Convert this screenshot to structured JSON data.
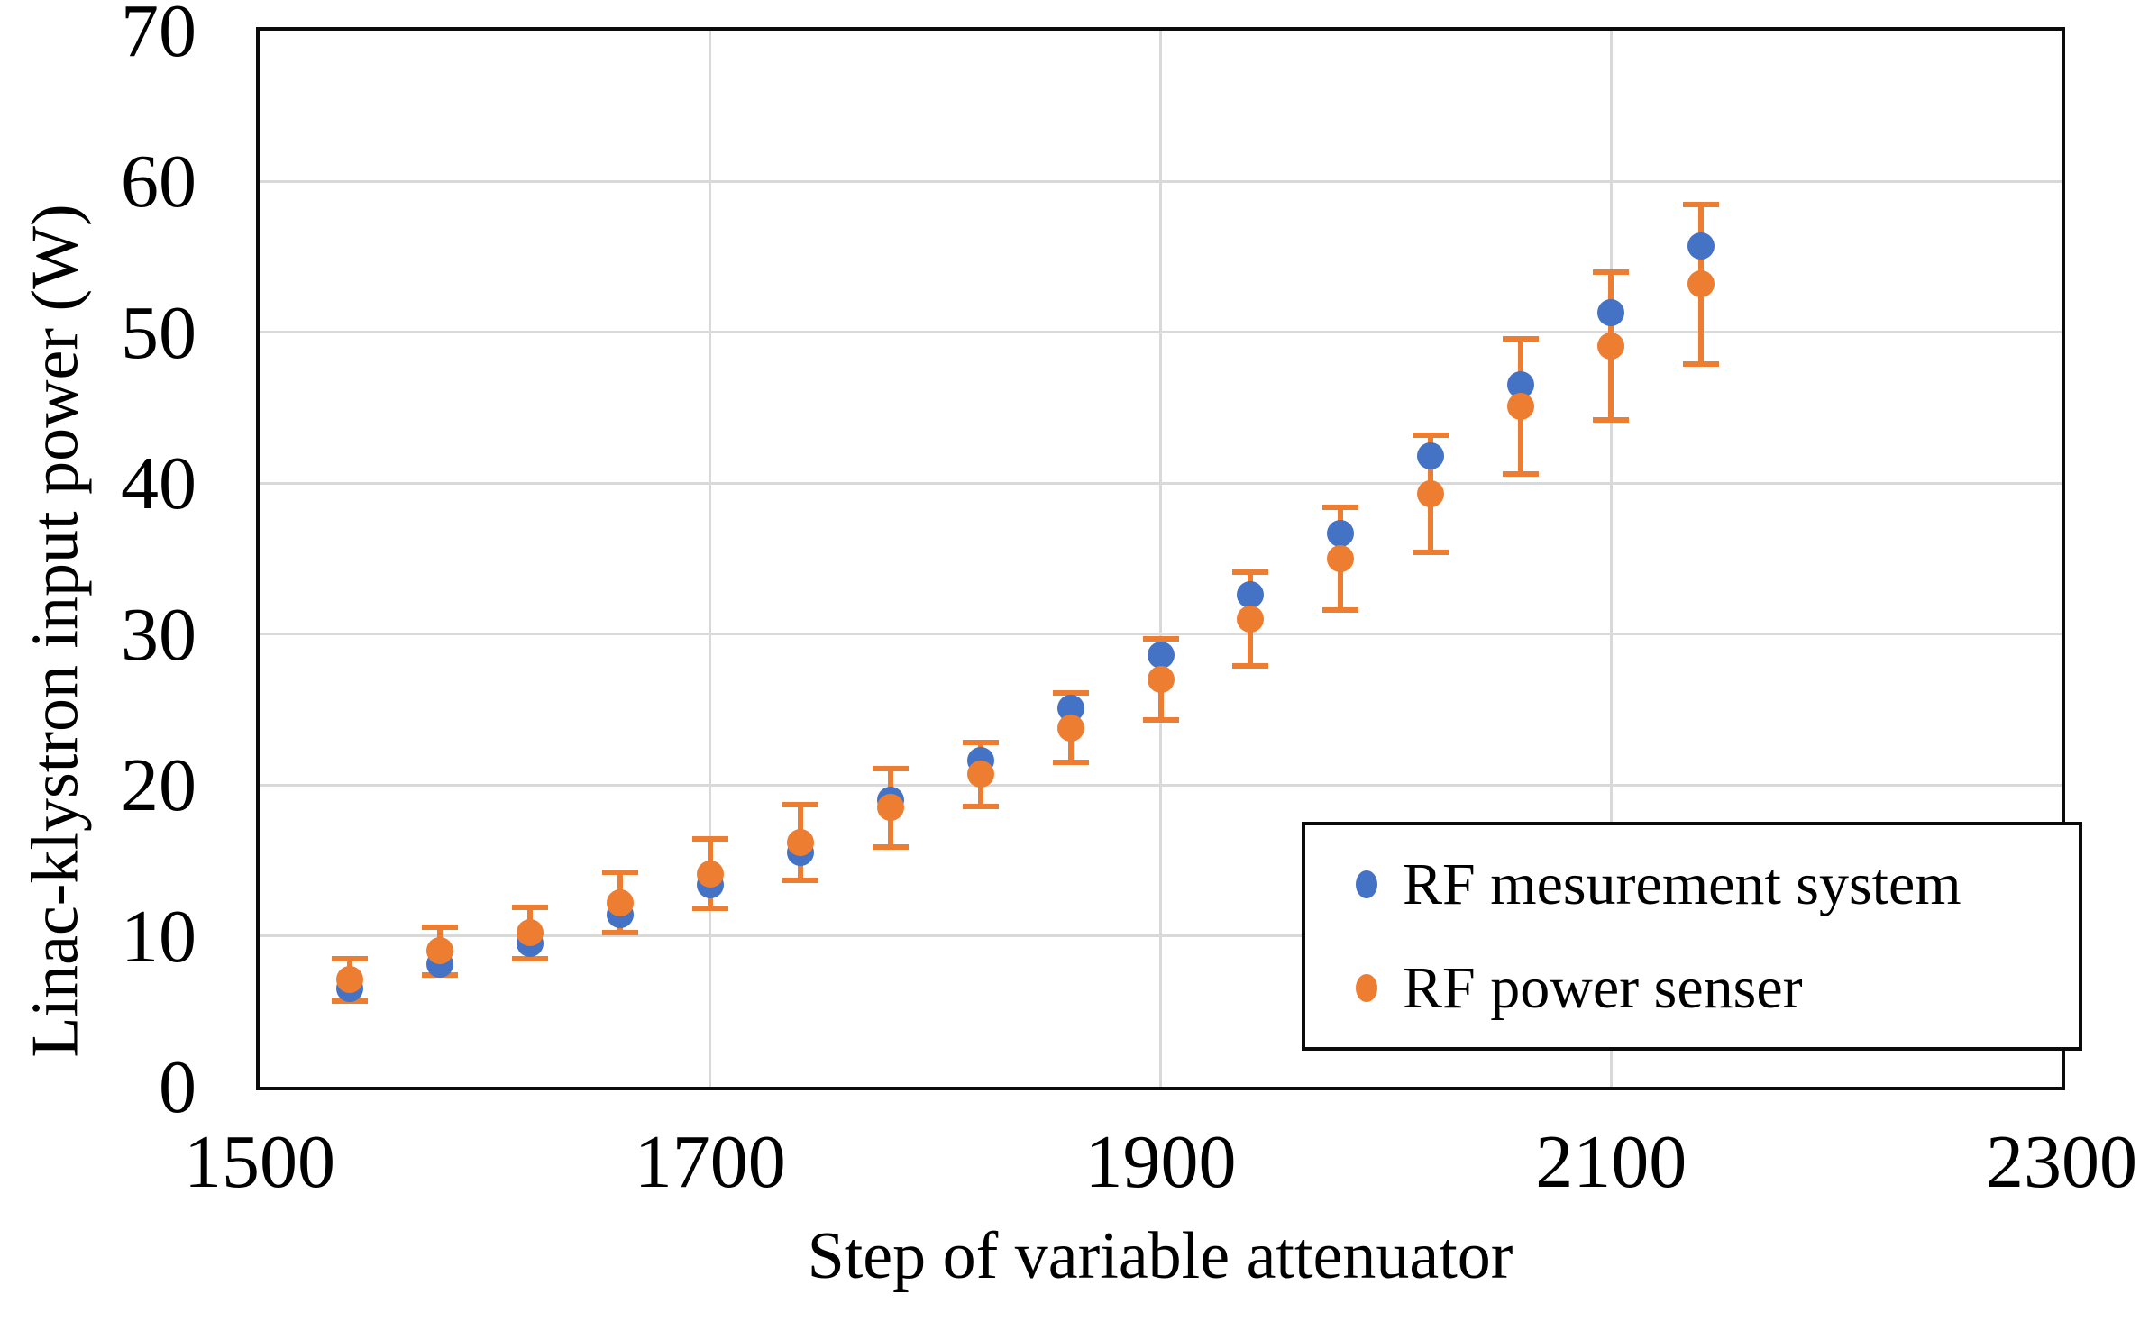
{
  "chart_data": {
    "type": "scatter",
    "title": "",
    "xlabel": "Step of variable attenuator",
    "ylabel": "Linac-klystron input power (W)",
    "xlim": [
      1500,
      2300
    ],
    "ylim": [
      0,
      70
    ],
    "x_ticks": [
      1500,
      1700,
      1900,
      2100,
      2300
    ],
    "y_ticks": [
      0,
      10,
      20,
      30,
      40,
      50,
      60,
      70
    ],
    "grid": true,
    "gridline_color": "#D9D9D9",
    "frame_color": "#0b0b0b",
    "legend_position": "inside-bottom-right",
    "x": [
      1540,
      1580,
      1620,
      1660,
      1700,
      1740,
      1780,
      1820,
      1860,
      1900,
      1940,
      1980,
      2020,
      2060,
      2100,
      2140
    ],
    "series": [
      {
        "name": "RF mesurement system",
        "color": "#4472C4",
        "marker": "circle",
        "values": [
          6.5,
          8.1,
          9.5,
          11.4,
          13.4,
          15.5,
          19.0,
          21.6,
          25.1,
          28.6,
          32.6,
          36.7,
          41.8,
          46.5,
          51.3,
          55.7
        ]
      },
      {
        "name": "RF power senser",
        "color": "#ED7D31",
        "marker": "circle",
        "values": [
          7.1,
          9.0,
          10.2,
          12.2,
          14.1,
          16.2,
          18.5,
          20.7,
          23.8,
          27.0,
          31.0,
          35.0,
          39.3,
          45.1,
          49.1,
          53.2
        ],
        "error_bars": [
          1.4,
          1.6,
          1.7,
          2.0,
          2.3,
          2.5,
          2.6,
          2.1,
          2.3,
          2.7,
          3.1,
          3.4,
          3.9,
          4.5,
          4.9,
          5.3
        ],
        "error_color": "#ED7D31"
      }
    ]
  }
}
